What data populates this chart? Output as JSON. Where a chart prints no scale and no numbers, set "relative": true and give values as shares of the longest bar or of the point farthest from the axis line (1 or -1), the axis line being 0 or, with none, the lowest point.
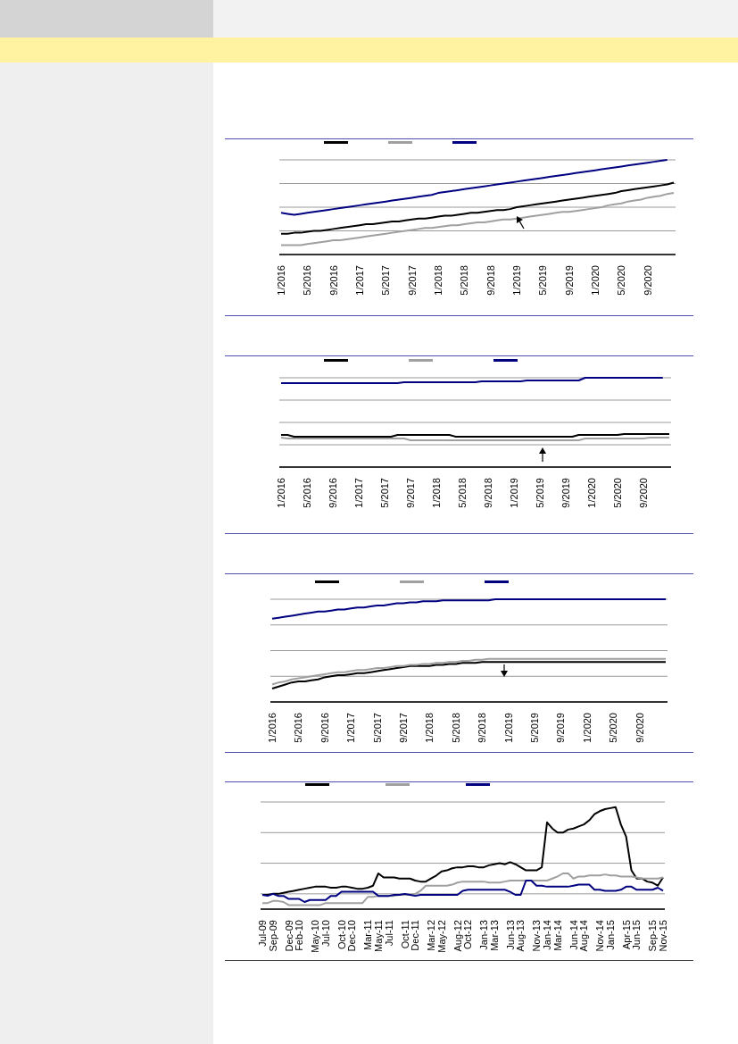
{
  "chart_data": [
    {
      "type": "line",
      "relative": true,
      "grid": "y",
      "marker": "none",
      "categories": [
        "1/2016",
        null,
        null,
        null,
        "5/2016",
        null,
        null,
        null,
        "9/2016",
        null,
        null,
        null,
        "1/2017",
        null,
        null,
        null,
        "5/2017",
        null,
        null,
        null,
        "9/2017",
        null,
        null,
        null,
        "1/2018",
        null,
        null,
        null,
        "5/2018",
        null,
        null,
        null,
        "9/2018",
        null,
        null,
        null,
        "1/2019",
        null,
        null,
        null,
        "5/2019",
        null,
        null,
        null,
        "9/2019",
        null,
        null,
        null,
        "1/2020",
        null,
        null,
        null,
        "5/2020",
        null,
        null,
        null,
        "9/2020",
        null,
        null,
        null,
        null
      ],
      "series": [
        {
          "color": "#000000",
          "values": [
            0.22,
            0.22,
            0.23,
            0.23,
            0.24,
            0.25,
            0.25,
            0.26,
            0.27,
            0.28,
            0.29,
            0.3,
            0.31,
            0.32,
            0.32,
            0.33,
            0.34,
            0.35,
            0.35,
            0.36,
            0.37,
            0.38,
            0.38,
            0.39,
            0.4,
            0.41,
            0.41,
            0.42,
            0.43,
            0.44,
            0.44,
            0.45,
            0.46,
            0.47,
            0.47,
            0.48,
            0.5,
            0.51,
            0.52,
            0.53,
            0.54,
            0.55,
            0.56,
            0.57,
            0.58,
            0.59,
            0.6,
            0.61,
            0.62,
            0.63,
            0.64,
            0.65,
            0.67,
            0.68,
            0.69,
            0.7,
            0.71,
            0.72,
            0.73,
            0.74,
            0.76
          ]
        },
        {
          "color": "#a0a0a0",
          "values": [
            0.1,
            0.1,
            0.1,
            0.1,
            0.11,
            0.12,
            0.13,
            0.14,
            0.15,
            0.15,
            0.16,
            0.17,
            0.18,
            0.19,
            0.2,
            0.21,
            0.22,
            0.23,
            0.24,
            0.25,
            0.26,
            0.27,
            0.28,
            0.28,
            0.29,
            0.3,
            0.31,
            0.31,
            0.32,
            0.33,
            0.34,
            0.34,
            0.35,
            0.36,
            0.37,
            0.37,
            0.38,
            0.39,
            0.4,
            0.41,
            0.42,
            0.43,
            0.44,
            0.45,
            0.45,
            0.46,
            0.47,
            0.48,
            0.49,
            0.5,
            0.52,
            0.53,
            0.54,
            0.56,
            0.57,
            0.58,
            0.6,
            0.61,
            0.62,
            0.64,
            0.65
          ]
        },
        {
          "color": "#000080",
          "values": [
            0.44,
            0.43,
            0.42,
            0.43,
            0.44,
            0.45,
            0.46,
            0.47,
            0.48,
            0.49,
            0.5,
            0.51,
            0.52,
            0.53,
            0.54,
            0.55,
            0.56,
            0.57,
            0.58,
            0.59,
            0.6,
            0.61,
            0.62,
            0.63,
            0.65,
            0.66,
            0.67,
            0.68,
            0.69,
            0.7,
            0.71,
            0.72,
            0.73,
            0.74,
            0.75,
            0.76,
            0.77,
            0.78,
            0.79,
            0.8,
            0.81,
            0.82,
            0.83,
            0.84,
            0.85,
            0.86,
            0.87,
            0.88,
            0.89,
            0.9,
            0.91,
            0.92,
            0.93,
            0.94,
            0.95,
            0.96,
            0.97,
            0.98,
            0.99,
            1.0,
            null
          ]
        }
      ]
    },
    {
      "type": "line",
      "relative": true,
      "grid": "y",
      "marker": "none",
      "categories": [
        "1/2016",
        null,
        null,
        null,
        "5/2016",
        null,
        null,
        null,
        "9/2016",
        null,
        null,
        null,
        "1/2017",
        null,
        null,
        null,
        "5/2017",
        null,
        null,
        null,
        "9/2017",
        null,
        null,
        null,
        "1/2018",
        null,
        null,
        null,
        "5/2018",
        null,
        null,
        null,
        "9/2018",
        null,
        null,
        null,
        "1/2019",
        null,
        null,
        null,
        "5/2019",
        null,
        null,
        null,
        "9/2019",
        null,
        null,
        null,
        "1/2020",
        null,
        null,
        null,
        "5/2020",
        null,
        null,
        null,
        "9/2020",
        null,
        null,
        null,
        null
      ],
      "series": [
        {
          "color": "#000000",
          "values": [
            0.36,
            0.36,
            0.34,
            0.34,
            0.34,
            0.34,
            0.34,
            0.34,
            0.34,
            0.34,
            0.34,
            0.34,
            0.34,
            0.34,
            0.34,
            0.34,
            0.34,
            0.34,
            0.36,
            0.36,
            0.36,
            0.36,
            0.36,
            0.36,
            0.36,
            0.36,
            0.36,
            0.34,
            0.34,
            0.34,
            0.34,
            0.34,
            0.34,
            0.34,
            0.34,
            0.34,
            0.34,
            0.34,
            0.34,
            0.34,
            0.34,
            0.34,
            0.34,
            0.34,
            0.34,
            0.34,
            0.36,
            0.36,
            0.36,
            0.36,
            0.36,
            0.36,
            0.36,
            0.37,
            0.37,
            0.37,
            0.37,
            0.37,
            0.37,
            0.37,
            0.37
          ]
        },
        {
          "color": "#a0a0a0",
          "values": [
            0.33,
            0.32,
            0.32,
            0.32,
            0.32,
            0.32,
            0.32,
            0.32,
            0.32,
            0.32,
            0.32,
            0.32,
            0.32,
            0.32,
            0.32,
            0.32,
            0.32,
            0.32,
            0.32,
            0.32,
            0.3,
            0.3,
            0.3,
            0.3,
            0.3,
            0.3,
            0.3,
            0.3,
            0.3,
            0.3,
            0.3,
            0.3,
            0.3,
            0.3,
            0.3,
            0.3,
            0.3,
            0.3,
            0.3,
            0.3,
            0.3,
            0.3,
            0.3,
            0.3,
            0.3,
            0.3,
            0.3,
            0.32,
            0.32,
            0.32,
            0.32,
            0.32,
            0.32,
            0.32,
            0.32,
            0.32,
            0.32,
            0.33,
            0.33,
            0.33,
            0.33
          ]
        },
        {
          "color": "#000080",
          "values": [
            0.94,
            0.94,
            0.94,
            0.94,
            0.94,
            0.94,
            0.94,
            0.94,
            0.94,
            0.94,
            0.94,
            0.94,
            0.94,
            0.94,
            0.94,
            0.94,
            0.94,
            0.94,
            0.94,
            0.95,
            0.95,
            0.95,
            0.95,
            0.95,
            0.95,
            0.95,
            0.95,
            0.95,
            0.95,
            0.95,
            0.95,
            0.96,
            0.96,
            0.96,
            0.96,
            0.96,
            0.96,
            0.96,
            0.97,
            0.97,
            0.97,
            0.97,
            0.97,
            0.97,
            0.97,
            0.97,
            0.97,
            1.0,
            1.0,
            1.0,
            1.0,
            1.0,
            1.0,
            1.0,
            1.0,
            1.0,
            1.0,
            1.0,
            1.0,
            1.0,
            null
          ]
        }
      ]
    },
    {
      "type": "line",
      "relative": true,
      "grid": "y",
      "marker": "none",
      "categories": [
        "1/2016",
        null,
        null,
        null,
        "5/2016",
        null,
        null,
        null,
        "9/2016",
        null,
        null,
        null,
        "1/2017",
        null,
        null,
        null,
        "5/2017",
        null,
        null,
        null,
        "9/2017",
        null,
        null,
        null,
        "1/2018",
        null,
        null,
        null,
        "5/2018",
        null,
        null,
        null,
        "9/2018",
        null,
        null,
        null,
        "1/2019",
        null,
        null,
        null,
        "5/2019",
        null,
        null,
        null,
        "9/2019",
        null,
        null,
        null,
        "1/2020",
        null,
        null,
        null,
        "5/2020",
        null,
        null,
        null,
        "9/2020",
        null,
        null,
        null,
        null
      ],
      "series": [
        {
          "color": "#000000",
          "values": [
            0.13,
            0.15,
            0.17,
            0.19,
            0.2,
            0.2,
            0.21,
            0.22,
            0.24,
            0.25,
            0.26,
            0.26,
            0.27,
            0.28,
            0.28,
            0.29,
            0.3,
            0.31,
            0.32,
            0.33,
            0.34,
            0.35,
            0.35,
            0.35,
            0.35,
            0.36,
            0.36,
            0.37,
            0.37,
            0.38,
            0.38,
            0.38,
            0.39,
            0.39,
            0.39,
            0.39,
            0.39,
            0.39,
            0.39,
            0.39,
            0.39,
            0.39,
            0.39,
            0.39,
            0.39,
            0.39,
            0.39,
            0.39,
            0.39,
            0.39,
            0.39,
            0.39,
            0.39,
            0.39,
            0.39,
            0.39,
            0.39,
            0.39,
            0.39,
            0.39,
            0.39
          ]
        },
        {
          "color": "#a0a0a0",
          "values": [
            0.17,
            0.19,
            0.2,
            0.22,
            0.23,
            0.24,
            0.25,
            0.26,
            0.27,
            0.28,
            0.29,
            0.29,
            0.3,
            0.31,
            0.31,
            0.32,
            0.33,
            0.33,
            0.34,
            0.35,
            0.35,
            0.36,
            0.36,
            0.37,
            0.37,
            0.38,
            0.38,
            0.39,
            0.39,
            0.4,
            0.4,
            0.41,
            0.41,
            0.42,
            0.42,
            0.42,
            0.42,
            0.42,
            0.42,
            0.42,
            0.42,
            0.42,
            0.42,
            0.42,
            0.42,
            0.42,
            0.42,
            0.42,
            0.42,
            0.42,
            0.42,
            0.42,
            0.42,
            0.42,
            0.42,
            0.42,
            0.42,
            0.42,
            0.42,
            0.42,
            0.42
          ]
        },
        {
          "color": "#000080",
          "values": [
            0.81,
            0.82,
            0.83,
            0.84,
            0.85,
            0.86,
            0.87,
            0.88,
            0.88,
            0.89,
            0.9,
            0.9,
            0.91,
            0.92,
            0.92,
            0.93,
            0.94,
            0.94,
            0.95,
            0.96,
            0.96,
            0.97,
            0.97,
            0.98,
            0.98,
            0.98,
            0.99,
            0.99,
            0.99,
            0.99,
            0.99,
            0.99,
            0.99,
            0.99,
            1.0,
            1.0,
            1.0,
            1.0,
            1.0,
            1.0,
            1.0,
            1.0,
            1.0,
            1.0,
            1.0,
            1.0,
            1.0,
            1.0,
            1.0,
            1.0,
            1.0,
            1.0,
            1.0,
            1.0,
            1.0,
            1.0,
            1.0,
            1.0,
            1.0,
            1.0,
            1.0
          ]
        }
      ]
    },
    {
      "type": "line",
      "relative": true,
      "grid": "y",
      "marker": "none",
      "categories": [
        "Jul-09",
        null,
        "Sep-09",
        null,
        null,
        "Dec-09",
        null,
        "Feb-10",
        null,
        null,
        "May-10",
        null,
        "Jul-10",
        null,
        null,
        "Oct-10",
        null,
        "Dec-10",
        null,
        null,
        "Mar-11",
        null,
        "May-11",
        null,
        "Jul-11",
        null,
        null,
        "Oct-11",
        null,
        "Dec-11",
        null,
        null,
        "Mar-12",
        null,
        "May-12",
        null,
        null,
        "Aug-12",
        null,
        "Oct-12",
        null,
        null,
        "Jan-13",
        null,
        "Mar-13",
        null,
        null,
        "Jun-13",
        null,
        "Aug-13",
        null,
        null,
        "Nov-13",
        null,
        "Jan-14",
        null,
        "Mar-14",
        null,
        null,
        "Jun-14",
        null,
        "Aug-14",
        null,
        null,
        "Nov-14",
        null,
        "Jan-15",
        null,
        null,
        "Apr-15",
        null,
        "Jun-15",
        null,
        null,
        "Sep-15",
        null,
        "Nov-15"
      ],
      "series": [
        {
          "color": "#000000",
          "values": [
            0.14,
            0.14,
            0.15,
            0.15,
            0.16,
            0.17,
            0.18,
            0.19,
            0.2,
            0.21,
            0.22,
            0.22,
            0.22,
            0.21,
            0.21,
            0.22,
            0.22,
            0.21,
            0.2,
            0.2,
            0.21,
            0.23,
            0.35,
            0.31,
            0.31,
            0.31,
            0.3,
            0.3,
            0.3,
            0.28,
            0.27,
            0.27,
            0.3,
            0.33,
            0.37,
            0.38,
            0.4,
            0.41,
            0.41,
            0.42,
            0.42,
            0.41,
            0.41,
            0.43,
            0.44,
            0.45,
            0.44,
            0.46,
            0.44,
            0.41,
            0.38,
            0.38,
            0.38,
            0.41,
            0.85,
            0.79,
            0.75,
            0.75,
            0.78,
            0.79,
            0.81,
            0.83,
            0.87,
            0.93,
            0.96,
            0.98,
            0.99,
            1.0,
            0.83,
            0.71,
            0.38,
            0.3,
            0.3,
            0.27,
            0.26,
            0.23,
            0.31
          ]
        },
        {
          "color": "#a0a0a0",
          "values": [
            0.06,
            0.06,
            0.08,
            0.08,
            0.07,
            0.04,
            0.04,
            0.04,
            0.04,
            0.04,
            0.04,
            0.04,
            0.06,
            0.06,
            0.06,
            0.06,
            0.06,
            0.06,
            0.06,
            0.06,
            0.12,
            0.12,
            0.13,
            0.13,
            0.13,
            0.13,
            0.14,
            0.14,
            0.14,
            0.15,
            0.18,
            0.23,
            0.23,
            0.23,
            0.23,
            0.23,
            0.24,
            0.26,
            0.27,
            0.27,
            0.27,
            0.27,
            0.27,
            0.26,
            0.26,
            0.26,
            0.27,
            0.28,
            0.28,
            0.28,
            0.28,
            0.28,
            0.28,
            0.28,
            0.28,
            0.3,
            0.32,
            0.35,
            0.35,
            0.3,
            0.32,
            0.32,
            0.33,
            0.33,
            0.33,
            0.34,
            0.33,
            0.33,
            0.32,
            0.32,
            0.32,
            0.31,
            0.3,
            0.3,
            0.3,
            0.3,
            0.31
          ]
        },
        {
          "color": "#000080",
          "values": [
            0.14,
            0.13,
            0.15,
            0.13,
            0.13,
            0.1,
            0.1,
            0.1,
            0.07,
            0.09,
            0.09,
            0.09,
            0.09,
            0.13,
            0.13,
            0.17,
            0.17,
            0.17,
            0.17,
            0.17,
            0.17,
            0.17,
            0.13,
            0.13,
            0.13,
            0.14,
            0.14,
            0.15,
            0.14,
            0.13,
            0.14,
            0.14,
            0.14,
            0.14,
            0.14,
            0.14,
            0.14,
            0.14,
            0.18,
            0.19,
            0.19,
            0.19,
            0.19,
            0.19,
            0.19,
            0.19,
            0.19,
            0.17,
            0.14,
            0.14,
            0.28,
            0.28,
            0.23,
            0.23,
            0.22,
            0.22,
            0.22,
            0.22,
            0.22,
            0.23,
            0.24,
            0.24,
            0.24,
            0.19,
            0.19,
            0.18,
            0.18,
            0.18,
            0.19,
            0.22,
            0.22,
            0.19,
            0.19,
            0.19,
            0.19,
            0.21,
            0.18
          ]
        }
      ]
    }
  ]
}
